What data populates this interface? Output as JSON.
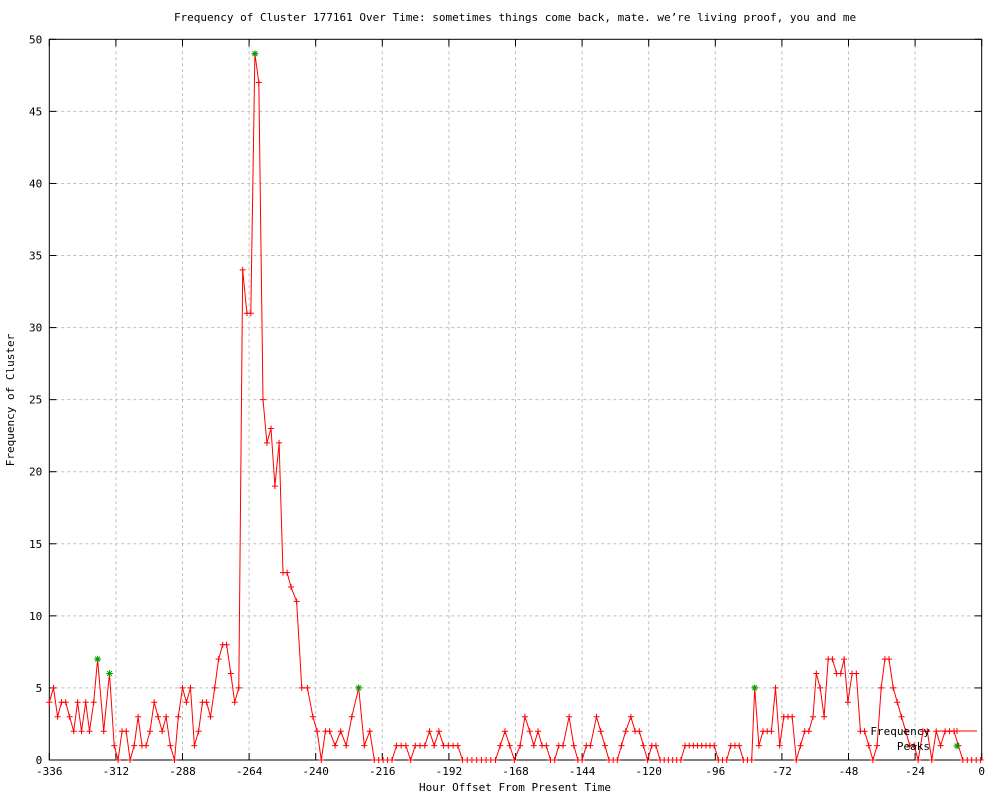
{
  "chart_data": {
    "type": "line",
    "title": "Frequency of Cluster 177161 Over Time: sometimes things come back, mate. we’re living proof, you and me",
    "xlabel": "Hour Offset From Present Time",
    "ylabel": "Frequency of Cluster",
    "xlim": [
      -336,
      0
    ],
    "ylim": [
      0,
      50
    ],
    "x_ticks": [
      -336,
      -312,
      -288,
      -264,
      -240,
      -216,
      -192,
      -168,
      -144,
      -120,
      -96,
      -72,
      -48,
      -24,
      0
    ],
    "y_ticks": [
      0,
      5,
      10,
      15,
      20,
      25,
      30,
      35,
      40,
      45,
      50
    ],
    "grid": true,
    "legend_position": "bottom-right",
    "colors": {
      "frequency": "#ff0000",
      "peaks": "#00a000",
      "grid": "#bfbfbf",
      "axis": "#000000"
    },
    "series": [
      {
        "name": "Frequency",
        "color": "#ff0000",
        "marker": "plus",
        "points": [
          [
            -336,
            4
          ],
          [
            -334.5,
            5
          ],
          [
            -333,
            3
          ],
          [
            -331.6,
            4
          ],
          [
            -330.1,
            4
          ],
          [
            -328.7,
            3
          ],
          [
            -327.2,
            2
          ],
          [
            -325.8,
            4
          ],
          [
            -324.4,
            2
          ],
          [
            -322.9,
            4
          ],
          [
            -321.5,
            2
          ],
          [
            -320,
            4
          ],
          [
            -318.6,
            7
          ],
          [
            -316.4,
            2
          ],
          [
            -314.3,
            6
          ],
          [
            -312.6,
            1
          ],
          [
            -311.2,
            0
          ],
          [
            -309.8,
            2
          ],
          [
            -308.3,
            2
          ],
          [
            -306.9,
            0
          ],
          [
            -305.4,
            1
          ],
          [
            -304,
            3
          ],
          [
            -302.6,
            1
          ],
          [
            -301.1,
            1
          ],
          [
            -299.7,
            2
          ],
          [
            -298.2,
            4
          ],
          [
            -296.8,
            3
          ],
          [
            -295.3,
            2
          ],
          [
            -293.9,
            3
          ],
          [
            -292.4,
            1
          ],
          [
            -290.9,
            0
          ],
          [
            -289.5,
            3
          ],
          [
            -288,
            5
          ],
          [
            -286.6,
            4
          ],
          [
            -285.1,
            5
          ],
          [
            -283.7,
            1
          ],
          [
            -282.2,
            2
          ],
          [
            -280.8,
            4
          ],
          [
            -279.3,
            4
          ],
          [
            -277.9,
            3
          ],
          [
            -276.4,
            5
          ],
          [
            -275,
            7
          ],
          [
            -273.5,
            8
          ],
          [
            -272.1,
            8
          ],
          [
            -270.6,
            6
          ],
          [
            -269.2,
            4
          ],
          [
            -267.7,
            5
          ],
          [
            -266.3,
            34
          ],
          [
            -264.8,
            31
          ],
          [
            -263.4,
            31
          ],
          [
            -261.9,
            49
          ],
          [
            -260.5,
            47
          ],
          [
            -259,
            25
          ],
          [
            -257.6,
            22
          ],
          [
            -256.1,
            23
          ],
          [
            -254.7,
            19
          ],
          [
            -253.2,
            22
          ],
          [
            -251.8,
            13
          ],
          [
            -250.3,
            13
          ],
          [
            -248.9,
            12
          ],
          [
            -246.9,
            11
          ],
          [
            -245,
            5
          ],
          [
            -243,
            5
          ],
          [
            -241,
            3
          ],
          [
            -239.5,
            2
          ],
          [
            -238,
            0
          ],
          [
            -236.5,
            2
          ],
          [
            -235,
            2
          ],
          [
            -233,
            1
          ],
          [
            -231,
            2
          ],
          [
            -229,
            1
          ],
          [
            -227,
            3
          ],
          [
            -224.5,
            5
          ],
          [
            -222.5,
            1
          ],
          [
            -220.5,
            2
          ],
          [
            -218.9,
            0
          ],
          [
            -217.3,
            0
          ],
          [
            -215.7,
            0
          ],
          [
            -214.1,
            0
          ],
          [
            -212.5,
            0
          ],
          [
            -210.9,
            1
          ],
          [
            -209.2,
            1
          ],
          [
            -207.5,
            1
          ],
          [
            -205.8,
            0
          ],
          [
            -204.1,
            1
          ],
          [
            -202.4,
            1
          ],
          [
            -200.7,
            1
          ],
          [
            -199,
            2
          ],
          [
            -197.3,
            1
          ],
          [
            -195.6,
            2
          ],
          [
            -193.9,
            1
          ],
          [
            -192.2,
            1
          ],
          [
            -190.5,
            1
          ],
          [
            -188.8,
            1
          ],
          [
            -187.1,
            0
          ],
          [
            -185.4,
            0
          ],
          [
            -183.7,
            0
          ],
          [
            -182,
            0
          ],
          [
            -180.3,
            0
          ],
          [
            -178.6,
            0
          ],
          [
            -176.9,
            0
          ],
          [
            -175.2,
            0
          ],
          [
            -173.5,
            1
          ],
          [
            -171.8,
            2
          ],
          [
            -170.1,
            1
          ],
          [
            -168.4,
            0
          ],
          [
            -166.3,
            1
          ],
          [
            -164.6,
            3
          ],
          [
            -162.9,
            2
          ],
          [
            -161.4,
            1
          ],
          [
            -159.9,
            2
          ],
          [
            -158.4,
            1
          ],
          [
            -156.9,
            1
          ],
          [
            -155.4,
            0
          ],
          [
            -153.9,
            0
          ],
          [
            -152.4,
            1
          ],
          [
            -150.9,
            1
          ],
          [
            -148.7,
            3
          ],
          [
            -147,
            1
          ],
          [
            -145.5,
            0
          ],
          [
            -144,
            0
          ],
          [
            -142.5,
            1
          ],
          [
            -141,
            1
          ],
          [
            -138.8,
            3
          ],
          [
            -137.3,
            2
          ],
          [
            -135.8,
            1
          ],
          [
            -134.3,
            0
          ],
          [
            -132.8,
            0
          ],
          [
            -131.3,
            0
          ],
          [
            -129.8,
            1
          ],
          [
            -128.3,
            2
          ],
          [
            -126.4,
            3
          ],
          [
            -124.9,
            2
          ],
          [
            -123.4,
            2
          ],
          [
            -121.9,
            1
          ],
          [
            -120.4,
            0
          ],
          [
            -118.9,
            1
          ],
          [
            -117.4,
            1
          ],
          [
            -115.9,
            0
          ],
          [
            -114.4,
            0
          ],
          [
            -112.9,
            0
          ],
          [
            -111.4,
            0
          ],
          [
            -109.9,
            0
          ],
          [
            -108.4,
            0
          ],
          [
            -106.9,
            1
          ],
          [
            -105.4,
            1
          ],
          [
            -103.9,
            1
          ],
          [
            -102.4,
            1
          ],
          [
            -100.9,
            1
          ],
          [
            -99.4,
            1
          ],
          [
            -97.9,
            1
          ],
          [
            -96.4,
            1
          ],
          [
            -94.9,
            0
          ],
          [
            -93.4,
            0
          ],
          [
            -91.9,
            0
          ],
          [
            -90.4,
            1
          ],
          [
            -88.9,
            1
          ],
          [
            -87.4,
            1
          ],
          [
            -85.9,
            0
          ],
          [
            -84.4,
            0
          ],
          [
            -82.9,
            0
          ],
          [
            -81.8,
            5
          ],
          [
            -80.3,
            1
          ],
          [
            -78.8,
            2
          ],
          [
            -77.3,
            2
          ],
          [
            -75.8,
            2
          ],
          [
            -74.3,
            5
          ],
          [
            -72.8,
            1
          ],
          [
            -71.3,
            3
          ],
          [
            -69.8,
            3
          ],
          [
            -68.3,
            3
          ],
          [
            -66.8,
            0
          ],
          [
            -65.3,
            1
          ],
          [
            -63.8,
            2
          ],
          [
            -62.3,
            2
          ],
          [
            -60.8,
            3
          ],
          [
            -59.6,
            6
          ],
          [
            -58.2,
            5
          ],
          [
            -56.8,
            3
          ],
          [
            -55.3,
            7
          ],
          [
            -53.8,
            7
          ],
          [
            -52.3,
            6
          ],
          [
            -50.8,
            6
          ],
          [
            -49.6,
            7
          ],
          [
            -48.2,
            4
          ],
          [
            -46.7,
            6
          ],
          [
            -45.2,
            6
          ],
          [
            -43.7,
            2
          ],
          [
            -42.2,
            2
          ],
          [
            -40.7,
            1
          ],
          [
            -39.2,
            0
          ],
          [
            -37.7,
            1
          ],
          [
            -36.2,
            5
          ],
          [
            -34.9,
            7
          ],
          [
            -33.4,
            7
          ],
          [
            -31.9,
            5
          ],
          [
            -30.4,
            4
          ],
          [
            -28.9,
            3
          ],
          [
            -27.4,
            2
          ],
          [
            -25.9,
            1
          ],
          [
            -24.4,
            1
          ],
          [
            -22.9,
            0
          ],
          [
            -21.2,
            2
          ],
          [
            -19.6,
            2
          ],
          [
            -18,
            0
          ],
          [
            -16.4,
            2
          ],
          [
            -14.8,
            1
          ],
          [
            -13.2,
            2
          ],
          [
            -11.6,
            2
          ],
          [
            -10,
            2
          ],
          [
            -8.4,
            1
          ],
          [
            -6.8,
            0
          ],
          [
            -5.2,
            0
          ],
          [
            -3.6,
            0
          ],
          [
            -2,
            0
          ],
          [
            -0.4,
            0
          ]
        ]
      },
      {
        "name": "Peaks",
        "color": "#00a000",
        "marker": "asterisk",
        "points": [
          [
            -318.6,
            7
          ],
          [
            -314.3,
            6
          ],
          [
            -261.9,
            49
          ],
          [
            -224.5,
            5
          ],
          [
            -81.8,
            5
          ]
        ]
      }
    ]
  }
}
